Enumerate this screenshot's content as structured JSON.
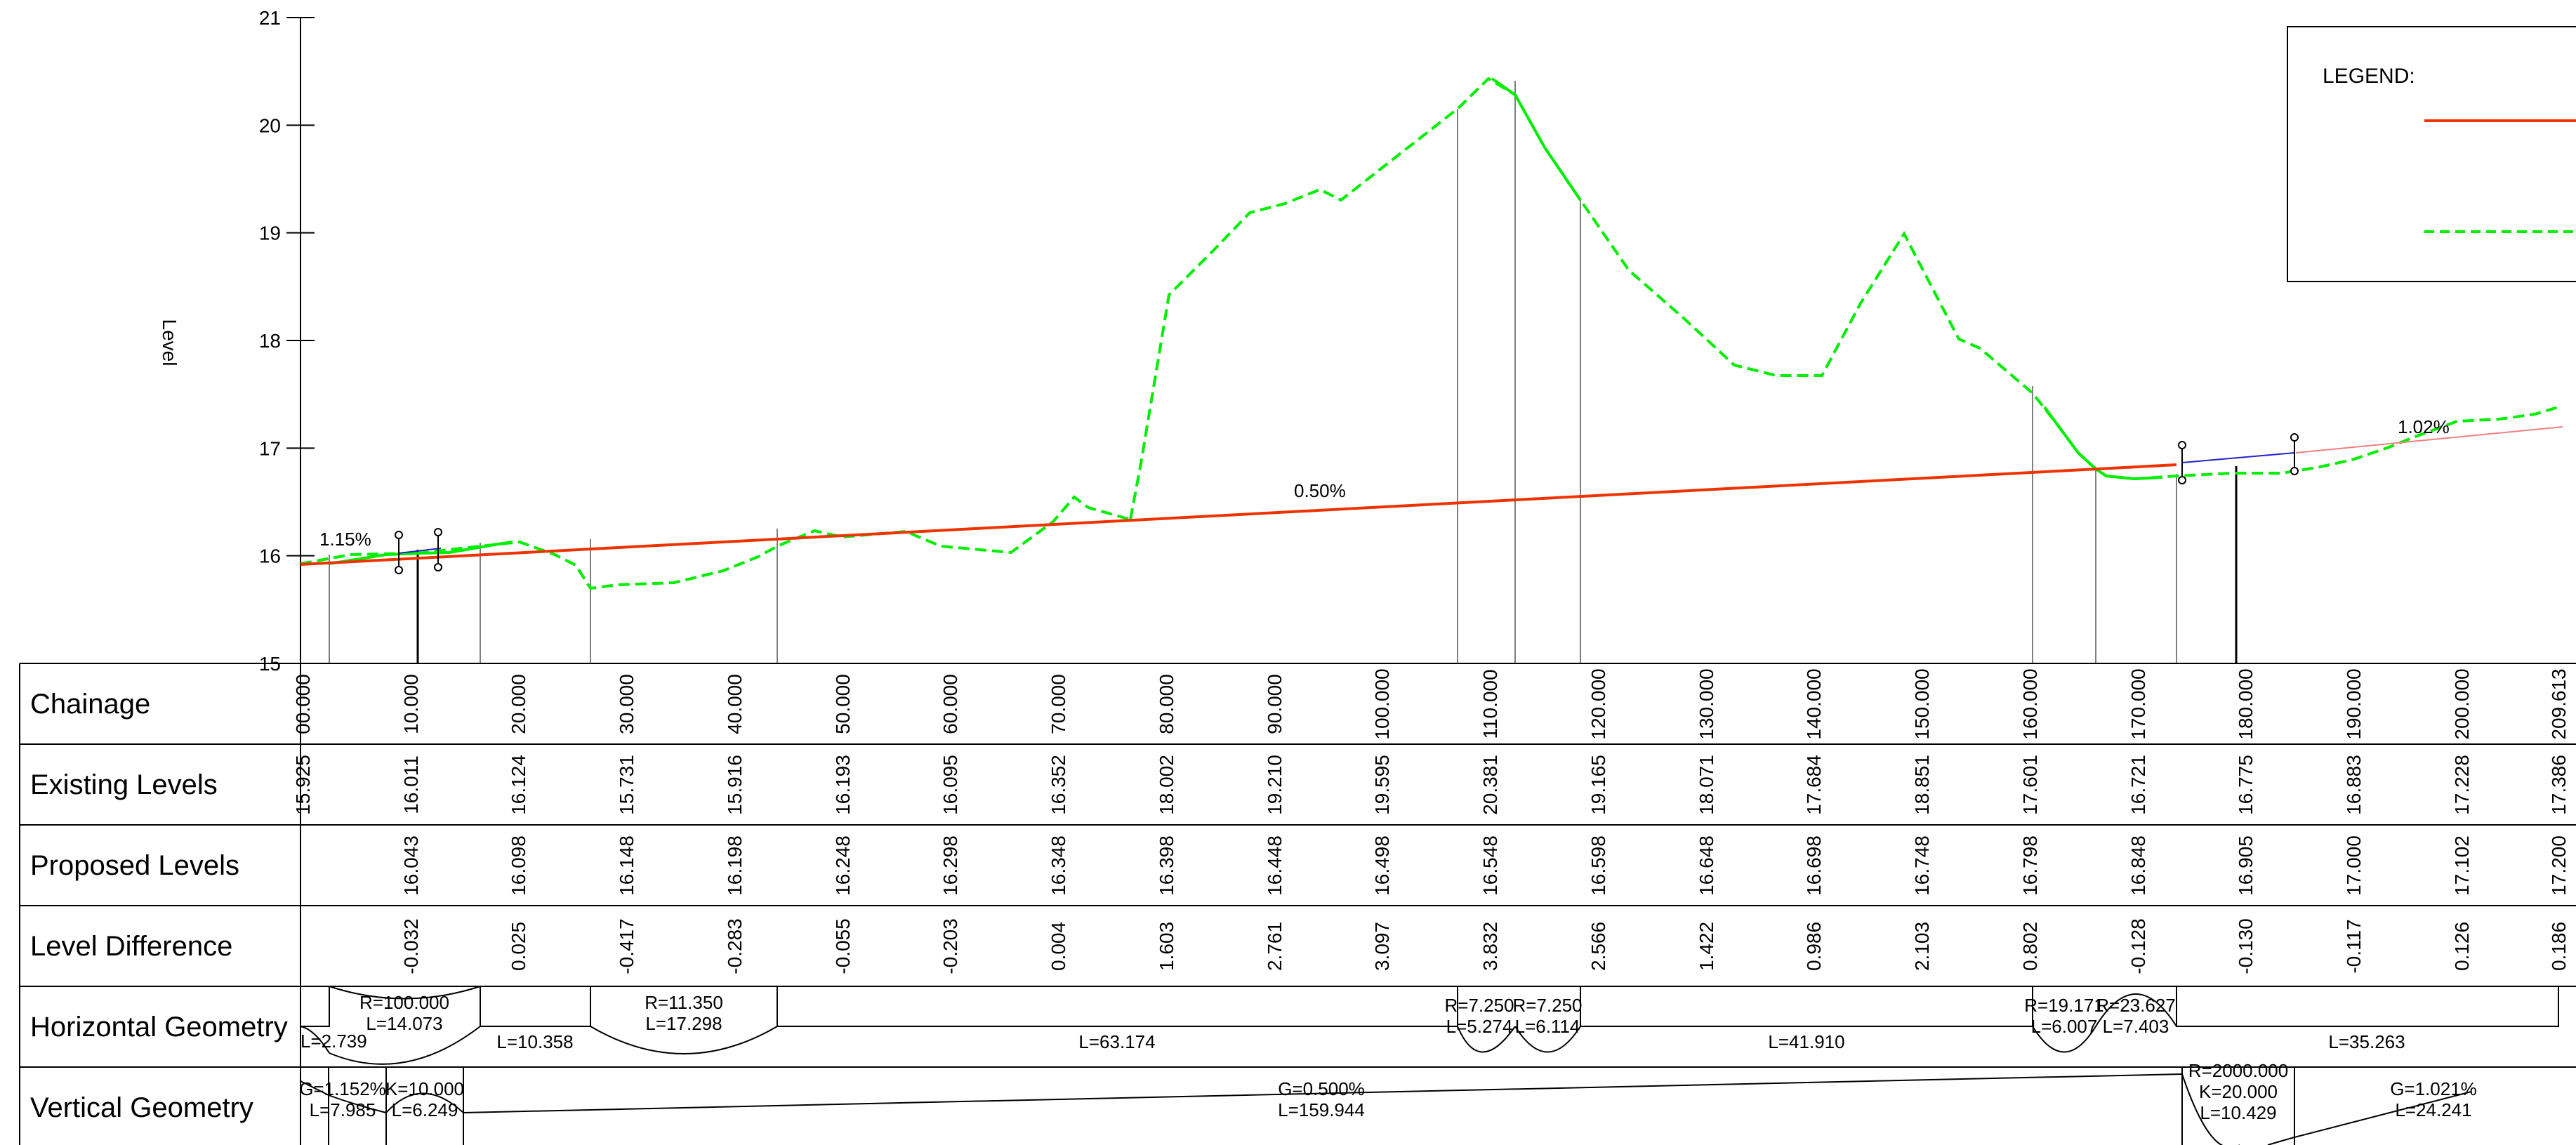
{
  "colors": {
    "proposed": "#ee3300",
    "existing": "#00ee00",
    "geometry_segment": "#2222cc",
    "extension": "#f08080",
    "grid": "#000000"
  },
  "axis": {
    "label": "Level",
    "ticks": [
      "21",
      "20",
      "19",
      "18",
      "17",
      "16",
      "15"
    ]
  },
  "legend": {
    "title": "LEGEND:"
  },
  "annotations": {
    "grade_start": "1.15%",
    "grade_main": "0.50%",
    "grade_end": "1.02%"
  },
  "table": {
    "row_labels": {
      "chainage": "Chainage",
      "existing": "Existing Levels",
      "proposed": "Proposed Levels",
      "difference": "Level Difference",
      "horizontal": "Horizontal Geometry",
      "vertical": "Vertical Geometry"
    },
    "columns": [
      {
        "chainage": "00.000",
        "existing": "15.925",
        "proposed": "",
        "difference": ""
      },
      {
        "chainage": "10.000",
        "existing": "16.011",
        "proposed": "16.043",
        "difference": "-0.032"
      },
      {
        "chainage": "20.000",
        "existing": "16.124",
        "proposed": "16.098",
        "difference": "0.025"
      },
      {
        "chainage": "30.000",
        "existing": "15.731",
        "proposed": "16.148",
        "difference": "-0.417"
      },
      {
        "chainage": "40.000",
        "existing": "15.916",
        "proposed": "16.198",
        "difference": "-0.283"
      },
      {
        "chainage": "50.000",
        "existing": "16.193",
        "proposed": "16.248",
        "difference": "-0.055"
      },
      {
        "chainage": "60.000",
        "existing": "16.095",
        "proposed": "16.298",
        "difference": "-0.203"
      },
      {
        "chainage": "70.000",
        "existing": "16.352",
        "proposed": "16.348",
        "difference": "0.004"
      },
      {
        "chainage": "80.000",
        "existing": "18.002",
        "proposed": "16.398",
        "difference": "1.603"
      },
      {
        "chainage": "90.000",
        "existing": "19.210",
        "proposed": "16.448",
        "difference": "2.761"
      },
      {
        "chainage": "100.000",
        "existing": "19.595",
        "proposed": "16.498",
        "difference": "3.097"
      },
      {
        "chainage": "110.000",
        "existing": "20.381",
        "proposed": "16.548",
        "difference": "3.832"
      },
      {
        "chainage": "120.000",
        "existing": "19.165",
        "proposed": "16.598",
        "difference": "2.566"
      },
      {
        "chainage": "130.000",
        "existing": "18.071",
        "proposed": "16.648",
        "difference": "1.422"
      },
      {
        "chainage": "140.000",
        "existing": "17.684",
        "proposed": "16.698",
        "difference": "0.986"
      },
      {
        "chainage": "150.000",
        "existing": "18.851",
        "proposed": "16.748",
        "difference": "2.103"
      },
      {
        "chainage": "160.000",
        "existing": "17.601",
        "proposed": "16.798",
        "difference": "0.802"
      },
      {
        "chainage": "170.000",
        "existing": "16.721",
        "proposed": "16.848",
        "difference": "-0.128"
      },
      {
        "chainage": "180.000",
        "existing": "16.775",
        "proposed": "16.905",
        "difference": "-0.130"
      },
      {
        "chainage": "190.000",
        "existing": "16.883",
        "proposed": "17.000",
        "difference": "-0.117"
      },
      {
        "chainage": "200.000",
        "existing": "17.228",
        "proposed": "17.102",
        "difference": "0.126"
      },
      {
        "chainage": "209.613",
        "existing": "17.386",
        "proposed": "17.200",
        "difference": "0.186"
      }
    ],
    "horizontal_geometry": [
      {
        "lines": [
          "L=2.739"
        ]
      },
      {
        "lines": [
          "R=100.000",
          "L=14.073"
        ]
      },
      {
        "lines": [
          "L=10.358"
        ]
      },
      {
        "lines": [
          "R=11.350",
          "L=17.298"
        ]
      },
      {
        "lines": [
          "L=63.174"
        ]
      },
      {
        "lines": [
          "R=7.250",
          "L=5.274"
        ]
      },
      {
        "lines": [
          "R=7.250",
          "L=6.114"
        ]
      },
      {
        "lines": [
          "L=41.910"
        ]
      },
      {
        "lines": [
          "R=19.171",
          "L=6.007"
        ]
      },
      {
        "lines": [
          "R=23.627",
          "L=7.403"
        ]
      },
      {
        "lines": [
          "L=35.263"
        ]
      }
    ],
    "vertical_geometry": [
      {
        "lines": [
          "G=1.152%",
          "L=7.985"
        ]
      },
      {
        "lines": [
          "K=10.000",
          "L=6.249"
        ]
      },
      {
        "lines": [
          "G=0.500%",
          "L=159.944"
        ]
      },
      {
        "lines": [
          "R=2000.000",
          "K=20.000",
          "L=10.429"
        ]
      },
      {
        "lines": [
          "G=1.021%",
          "L=24.241"
        ]
      }
    ]
  }
}
